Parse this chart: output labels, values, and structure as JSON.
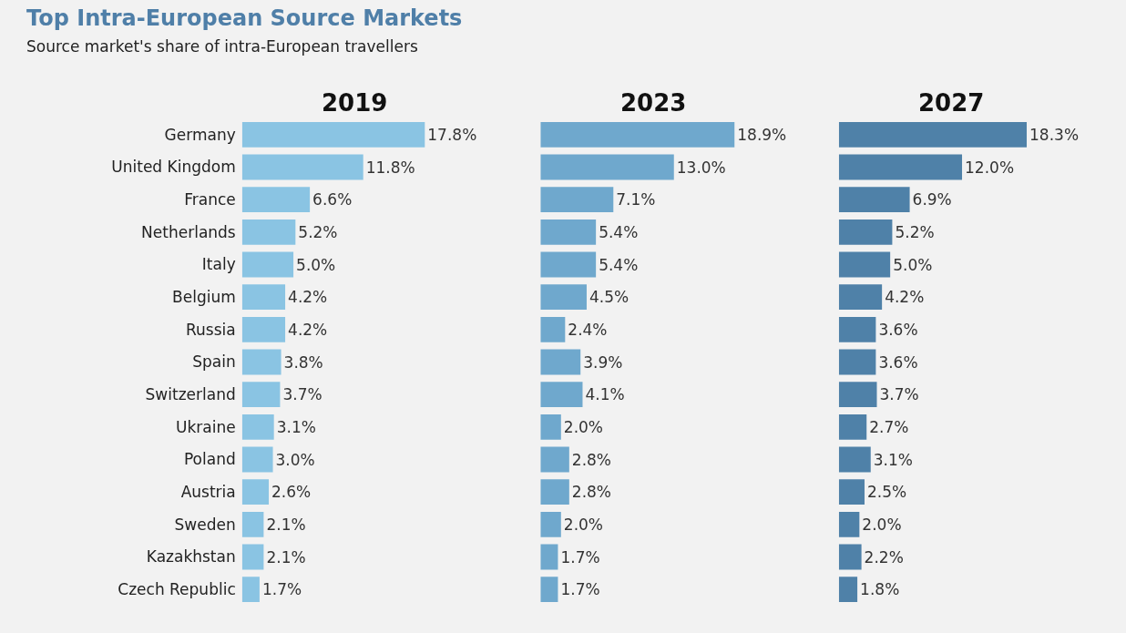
{
  "chart_data": [
    {
      "type": "other",
      "title": "Top Intra-European Source Markets",
      "subtitle": "Source market's share of intra-European travellers"
    },
    {
      "type": "bar",
      "orientation": "horizontal",
      "title": "2019",
      "color": "#8ac4e3",
      "categories": [
        "Germany",
        "United Kingdom",
        "France",
        "Netherlands",
        "Italy",
        "Belgium",
        "Russia",
        "Spain",
        "Switzerland",
        "Ukraine",
        "Poland",
        "Austria",
        "Sweden",
        "Kazakhstan",
        "Czech Republic"
      ],
      "values": [
        17.8,
        11.8,
        6.6,
        5.2,
        5.0,
        4.2,
        4.2,
        3.8,
        3.7,
        3.1,
        3.0,
        2.6,
        2.1,
        2.1,
        1.7
      ],
      "value_labels": [
        "17.8%",
        "11.8%",
        "6.6%",
        "5.2%",
        "5.0%",
        "4.2%",
        "4.2%",
        "3.8%",
        "3.7%",
        "3.1%",
        "3.0%",
        "2.6%",
        "2.1%",
        "2.1%",
        "1.7%"
      ]
    },
    {
      "type": "bar",
      "orientation": "horizontal",
      "title": "2023",
      "color": "#6fa8cd",
      "categories": [
        null,
        null,
        null,
        null,
        null,
        null,
        null,
        null,
        null,
        null,
        null,
        null,
        null,
        null,
        null
      ],
      "values": [
        18.9,
        13.0,
        7.1,
        5.4,
        5.4,
        4.5,
        2.4,
        3.9,
        4.1,
        2.0,
        2.8,
        2.8,
        2.0,
        1.7,
        1.7
      ],
      "value_labels": [
        "18.9%",
        "13.0%",
        "7.1%",
        "5.4%",
        "5.4%",
        "4.5%",
        "2.4%",
        "3.9%",
        "4.1%",
        "2.0%",
        "2.8%",
        "2.8%",
        "2.0%",
        "1.7%",
        "1.7%"
      ]
    },
    {
      "type": "bar",
      "orientation": "horizontal",
      "title": "2027",
      "color": "#4f81a8",
      "categories": [
        null,
        null,
        null,
        null,
        null,
        null,
        null,
        null,
        null,
        null,
        null,
        null,
        null,
        null,
        null
      ],
      "values": [
        18.3,
        12.0,
        6.9,
        5.2,
        5.0,
        4.2,
        3.6,
        3.6,
        3.7,
        2.7,
        3.1,
        2.5,
        2.0,
        2.2,
        1.8
      ],
      "value_labels": [
        "18.3%",
        "12.0%",
        "6.9%",
        "5.2%",
        "5.0%",
        "4.2%",
        "3.6%",
        "3.6%",
        "3.7%",
        "2.7%",
        "3.1%",
        "2.5%",
        "2.0%",
        "2.2%",
        "1.8%"
      ]
    }
  ]
}
